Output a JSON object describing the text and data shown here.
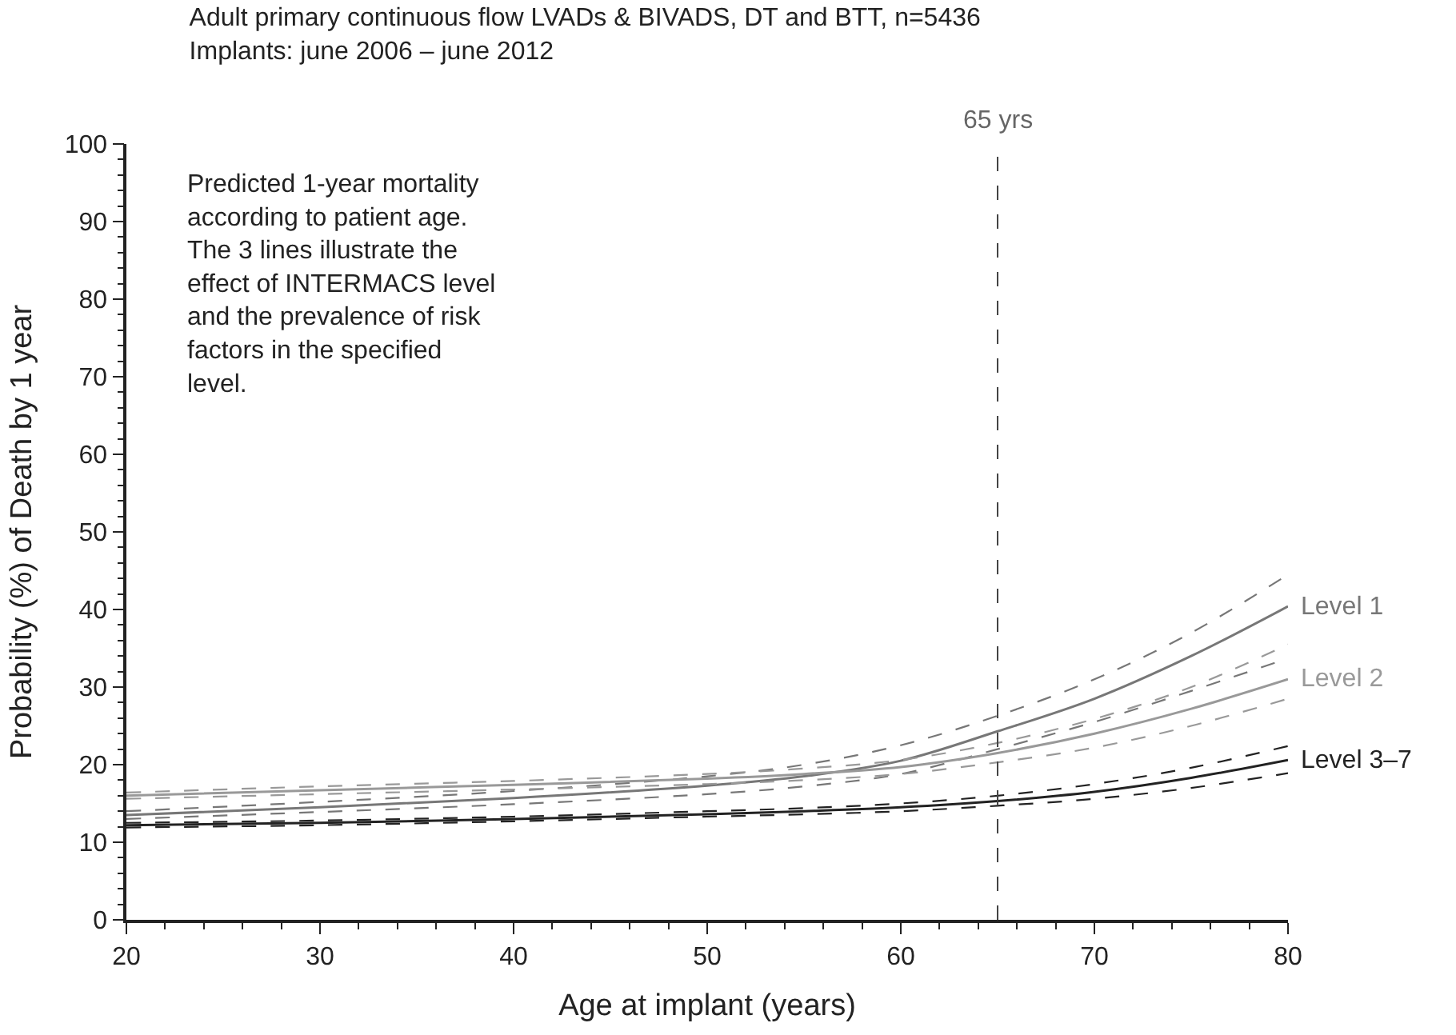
{
  "chart_data": {
    "type": "line",
    "title": "Adult primary continuous flow LVADs & BIVADS, DT and BTT, n=5436",
    "subtitle": "Implants: june 2006 – june 2012",
    "xlabel": "Age at implant (years)",
    "ylabel": "Probability (%) of Death by 1 year",
    "x": [
      20,
      30,
      40,
      50,
      55,
      60,
      65,
      70,
      75,
      80
    ],
    "series": [
      {
        "name": "Level 1",
        "color": "#777777",
        "values": [
          13.5,
          14.5,
          15.7,
          17.3,
          18.5,
          20.5,
          24.3,
          28.5,
          34,
          40.4
        ]
      },
      {
        "color": "#777777",
        "line_style": "dashed",
        "values": [
          13,
          13.9,
          14.9,
          16.2,
          17.2,
          18.8,
          22,
          25.5,
          29.5,
          33.7
        ]
      },
      {
        "color": "#777777",
        "line_style": "dashed",
        "values": [
          14,
          15.2,
          16.6,
          18.5,
          20,
          22.5,
          26.3,
          31,
          37,
          44.5
        ]
      },
      {
        "name": "Level 2",
        "color": "#999999",
        "values": [
          16,
          16.7,
          17.4,
          18.2,
          18.8,
          19.7,
          21.5,
          24,
          27.2,
          31
        ]
      },
      {
        "color": "#999999",
        "line_style": "dashed",
        "values": [
          15.6,
          16.2,
          16.8,
          17.5,
          18,
          18.8,
          20.3,
          22.2,
          25,
          28.5
        ]
      },
      {
        "color": "#999999",
        "line_style": "dashed",
        "values": [
          16.4,
          17.2,
          17.9,
          18.8,
          19.5,
          20.6,
          22.8,
          25.9,
          30,
          35.5
        ]
      },
      {
        "name": "Level 3–7",
        "color": "#222222",
        "values": [
          12.2,
          12.5,
          13,
          13.6,
          14,
          14.5,
          15.3,
          16.5,
          18.3,
          20.6
        ]
      },
      {
        "color": "#222222",
        "line_style": "dashed",
        "values": [
          11.9,
          12.2,
          12.7,
          13.3,
          13.6,
          14,
          14.7,
          15.6,
          17,
          18.9
        ]
      },
      {
        "color": "#222222",
        "line_style": "dashed",
        "values": [
          12.5,
          12.8,
          13.3,
          14,
          14.4,
          15,
          16,
          17.5,
          19.6,
          22.4
        ]
      }
    ],
    "xlim": [
      20,
      80
    ],
    "xticks": [
      20,
      30,
      40,
      50,
      60,
      70,
      80
    ],
    "ylim": [
      0,
      100
    ],
    "yticks": [
      0,
      10,
      20,
      30,
      40,
      50,
      60,
      70,
      80,
      90,
      100
    ],
    "ref_lines": [
      {
        "axis": "x",
        "value": 65,
        "label": "65 yrs",
        "color": "#444444",
        "line_style": "dashed"
      }
    ],
    "annotations": [
      "Predicted 1-year mortality according to patient age. The 3 lines illustrate the effect of INTERMACS level and the prevalence of risk factors in the specified level."
    ],
    "grid": false,
    "legend": false,
    "marker": "none",
    "line_style": "solid"
  }
}
